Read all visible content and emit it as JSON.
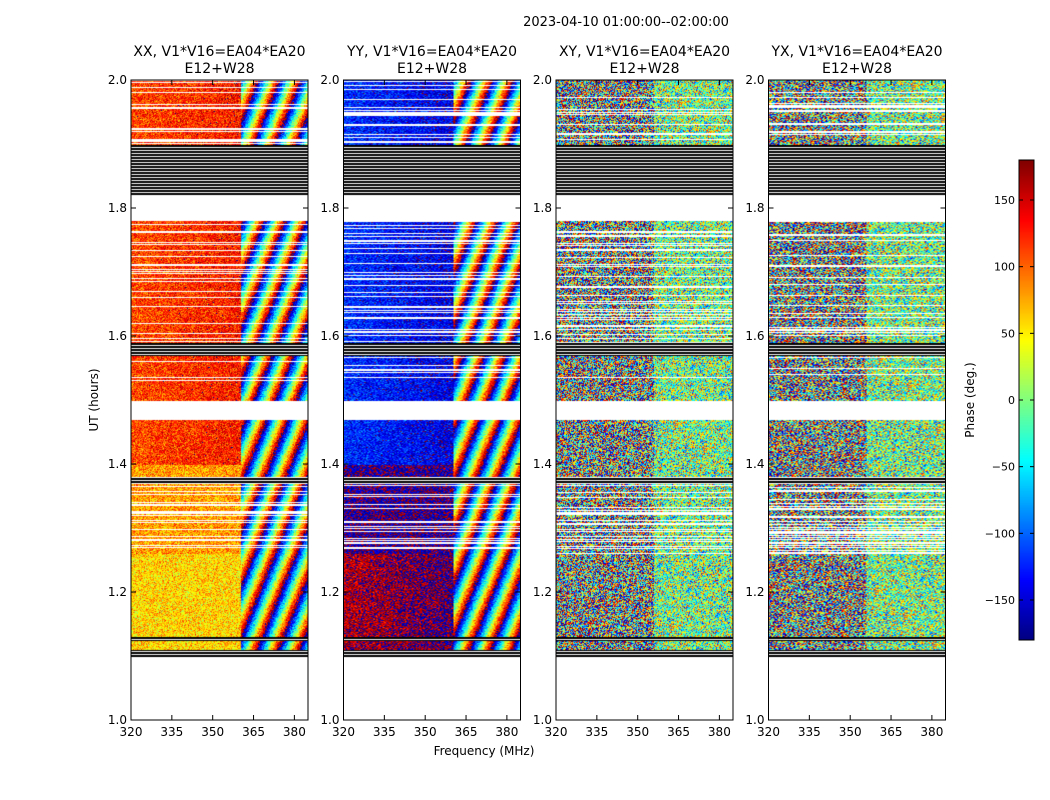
{
  "chart_data": {
    "type": "heatmap",
    "suptitle": "2023-04-10  01:00:00--02:00:00",
    "xlabel": "Frequency (MHz)",
    "ylabel": "UT (hours)",
    "xlim": [
      320,
      385
    ],
    "ylim": [
      1.0,
      2.0
    ],
    "xticks": [
      320,
      335,
      350,
      365,
      380
    ],
    "yticks": [
      1.0,
      1.2,
      1.4,
      1.6,
      1.8,
      2.0
    ],
    "panels": [
      {
        "title_line1": "XX, V1*V16=EA04*EA20",
        "title_line2": "E12+W28",
        "base_phase": 100,
        "mode": "parallel"
      },
      {
        "title_line1": "YY, V1*V16=EA04*EA20",
        "title_line2": "E12+W28",
        "base_phase": -140,
        "mode": "parallel"
      },
      {
        "title_line1": "XY, V1*V16=EA04*EA20",
        "title_line2": "E12+W28",
        "base_phase": 0,
        "mode": "cross"
      },
      {
        "title_line1": "YX, V1*V16=EA04*EA20",
        "title_line2": "E12+W28",
        "base_phase": 0,
        "mode": "cross"
      }
    ],
    "flagged_time_ranges_hours": [
      [
        1.0,
        1.1
      ],
      [
        1.47,
        1.5
      ],
      [
        1.78,
        1.82
      ]
    ],
    "dense_flag_bands_hours": [
      [
        1.82,
        1.9
      ],
      [
        1.57,
        1.59
      ],
      [
        1.37,
        1.38
      ],
      [
        1.1,
        1.11
      ],
      [
        1.125,
        1.13
      ]
    ],
    "colorbar": {
      "label": "Phase (deg.)",
      "range": [
        -180,
        180
      ],
      "ticks": [
        -150,
        -100,
        -50,
        0,
        50,
        100,
        150
      ],
      "tick_labels": [
        "−150",
        "−100",
        "−50",
        "0",
        "50",
        "100",
        "150"
      ],
      "colormap": "jet"
    }
  }
}
